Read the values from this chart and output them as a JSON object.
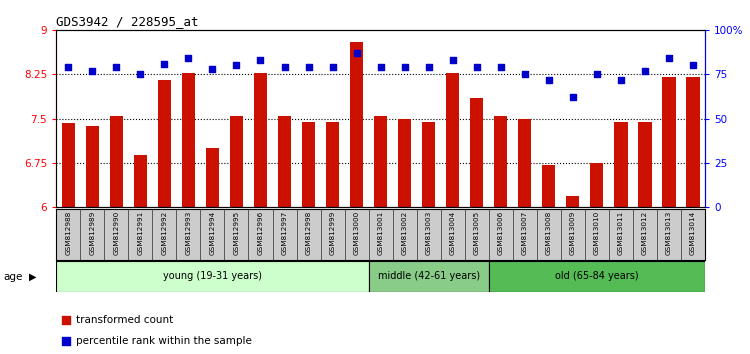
{
  "title": "GDS3942 / 228595_at",
  "samples": [
    "GSM812988",
    "GSM812989",
    "GSM812990",
    "GSM812991",
    "GSM812992",
    "GSM812993",
    "GSM812994",
    "GSM812995",
    "GSM812996",
    "GSM812997",
    "GSM812998",
    "GSM812999",
    "GSM813000",
    "GSM813001",
    "GSM813002",
    "GSM813003",
    "GSM813004",
    "GSM813005",
    "GSM813006",
    "GSM813007",
    "GSM813008",
    "GSM813009",
    "GSM813010",
    "GSM813011",
    "GSM813012",
    "GSM813013",
    "GSM813014"
  ],
  "bar_values": [
    7.42,
    7.37,
    7.55,
    6.88,
    8.15,
    8.27,
    7.0,
    7.55,
    8.27,
    7.55,
    7.45,
    7.45,
    8.8,
    7.55,
    7.5,
    7.45,
    8.27,
    7.85,
    7.55,
    7.5,
    6.72,
    6.18,
    6.75,
    7.45,
    7.45,
    8.2,
    8.2
  ],
  "percentile_values": [
    79,
    77,
    79,
    75,
    81,
    84,
    78,
    80,
    83,
    79,
    79,
    79,
    87,
    79,
    79,
    79,
    83,
    79,
    79,
    75,
    72,
    62,
    75,
    72,
    77,
    84,
    80
  ],
  "groups": [
    {
      "label": "young (19-31 years)",
      "start": 0,
      "end": 13,
      "color": "#ccffcc"
    },
    {
      "label": "middle (42-61 years)",
      "start": 13,
      "end": 18,
      "color": "#88cc88"
    },
    {
      "label": "old (65-84 years)",
      "start": 18,
      "end": 27,
      "color": "#55bb55"
    }
  ],
  "bar_color": "#cc1100",
  "dot_color": "#0000cc",
  "ylim_left": [
    6.0,
    9.0
  ],
  "ylim_right": [
    0,
    100
  ],
  "yticks_left": [
    6.0,
    6.75,
    7.5,
    8.25,
    9.0
  ],
  "ytick_labels_left": [
    "6",
    "6.75",
    "7.5",
    "8.25",
    "9"
  ],
  "yticks_right": [
    0,
    25,
    50,
    75,
    100
  ],
  "ytick_labels_right": [
    "0",
    "25",
    "50",
    "75",
    "100%"
  ],
  "hlines": [
    6.75,
    7.5,
    8.25
  ],
  "legend_items": [
    {
      "label": "transformed count",
      "color": "#cc1100"
    },
    {
      "label": "percentile rank within the sample",
      "color": "#0000cc"
    }
  ],
  "age_label": "age"
}
